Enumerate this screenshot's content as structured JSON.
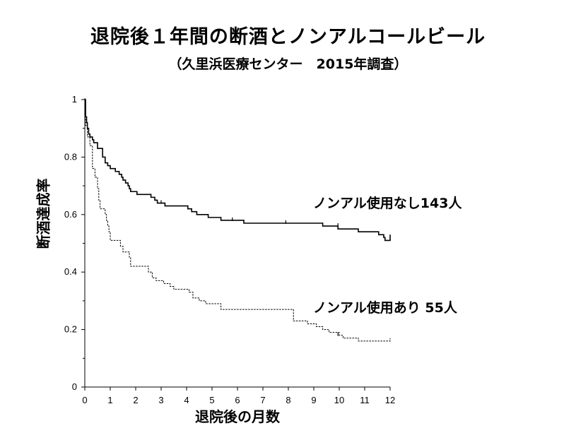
{
  "chart_data": {
    "type": "line",
    "title": "退院後１年間の断酒とノンアルコールビール",
    "subtitle": "（久里浜医療センター　2015年調査）",
    "xlabel": "退院後の月数",
    "ylabel": "断酒達成率",
    "xlim": [
      0,
      12
    ],
    "ylim": [
      0,
      1
    ],
    "x_ticks": [
      "0",
      "1",
      "2",
      "3",
      "4",
      "5",
      "6",
      "7",
      "8",
      "9",
      "10",
      "11",
      "12"
    ],
    "y_ticks": [
      "0",
      "0.2",
      "0.4",
      "0.6",
      "0.8",
      "1"
    ],
    "grid": false,
    "step": true,
    "series": [
      {
        "name": "ノンアルコールビール使用なし",
        "label": "ノンアル使用なし143人",
        "style": "solid",
        "points": [
          [
            0,
            1.0
          ],
          [
            0.03,
            0.94
          ],
          [
            0.07,
            0.92
          ],
          [
            0.1,
            0.9
          ],
          [
            0.15,
            0.88
          ],
          [
            0.2,
            0.87
          ],
          [
            0.3,
            0.86
          ],
          [
            0.35,
            0.85
          ],
          [
            0.5,
            0.83
          ],
          [
            0.7,
            0.8
          ],
          [
            0.8,
            0.78
          ],
          [
            0.9,
            0.77
          ],
          [
            1.0,
            0.76
          ],
          [
            1.2,
            0.75
          ],
          [
            1.35,
            0.74
          ],
          [
            1.45,
            0.73
          ],
          [
            1.5,
            0.72
          ],
          [
            1.6,
            0.71
          ],
          [
            1.7,
            0.7
          ],
          [
            1.75,
            0.69
          ],
          [
            1.8,
            0.68
          ],
          [
            2.0,
            0.68
          ],
          [
            2.05,
            0.67
          ],
          [
            2.6,
            0.66
          ],
          [
            2.75,
            0.65
          ],
          [
            2.85,
            0.64
          ],
          [
            3.0,
            0.64
          ],
          [
            3.15,
            0.63
          ],
          [
            4.0,
            0.63
          ],
          [
            4.05,
            0.62
          ],
          [
            4.2,
            0.61
          ],
          [
            4.4,
            0.6
          ],
          [
            4.8,
            0.6
          ],
          [
            4.85,
            0.59
          ],
          [
            5.35,
            0.58
          ],
          [
            5.8,
            0.58
          ],
          [
            6.25,
            0.57
          ],
          [
            9.3,
            0.57
          ],
          [
            9.35,
            0.56
          ],
          [
            9.95,
            0.55
          ],
          [
            10.7,
            0.55
          ],
          [
            10.75,
            0.54
          ],
          [
            11.55,
            0.53
          ],
          [
            11.75,
            0.52
          ],
          [
            11.8,
            0.51
          ],
          [
            12.0,
            0.53
          ]
        ]
      },
      {
        "name": "ノンアルコールビール使用あり",
        "label": "ノンアル使用あり 55人",
        "style": "dashed",
        "points": [
          [
            0,
            0.96
          ],
          [
            0.03,
            0.91
          ],
          [
            0.1,
            0.87
          ],
          [
            0.2,
            0.84
          ],
          [
            0.3,
            0.76
          ],
          [
            0.4,
            0.73
          ],
          [
            0.5,
            0.69
          ],
          [
            0.55,
            0.65
          ],
          [
            0.6,
            0.62
          ],
          [
            0.8,
            0.6
          ],
          [
            0.85,
            0.58
          ],
          [
            0.9,
            0.56
          ],
          [
            0.95,
            0.54
          ],
          [
            1.0,
            0.51
          ],
          [
            1.4,
            0.49
          ],
          [
            1.5,
            0.47
          ],
          [
            1.75,
            0.45
          ],
          [
            1.8,
            0.42
          ],
          [
            2.5,
            0.4
          ],
          [
            2.65,
            0.38
          ],
          [
            2.8,
            0.37
          ],
          [
            3.1,
            0.36
          ],
          [
            3.35,
            0.35
          ],
          [
            3.5,
            0.34
          ],
          [
            4.1,
            0.33
          ],
          [
            4.25,
            0.31
          ],
          [
            4.5,
            0.3
          ],
          [
            4.75,
            0.29
          ],
          [
            5.35,
            0.27
          ],
          [
            7.85,
            0.27
          ],
          [
            8.2,
            0.23
          ],
          [
            8.75,
            0.22
          ],
          [
            9.1,
            0.21
          ],
          [
            9.35,
            0.2
          ],
          [
            9.6,
            0.19
          ],
          [
            10.0,
            0.18
          ],
          [
            10.15,
            0.17
          ],
          [
            10.75,
            0.16
          ],
          [
            11.95,
            0.16
          ],
          [
            12.0,
            0.17
          ]
        ]
      }
    ],
    "censor_marks": [
      {
        "series": 0,
        "points": [
          [
            3.0,
            0.64
          ],
          [
            5.8,
            0.58
          ],
          [
            7.9,
            0.57
          ],
          [
            9.95,
            0.56
          ]
        ]
      },
      {
        "series": 1,
        "points": [
          [
            9.95,
            0.18
          ]
        ]
      }
    ]
  }
}
